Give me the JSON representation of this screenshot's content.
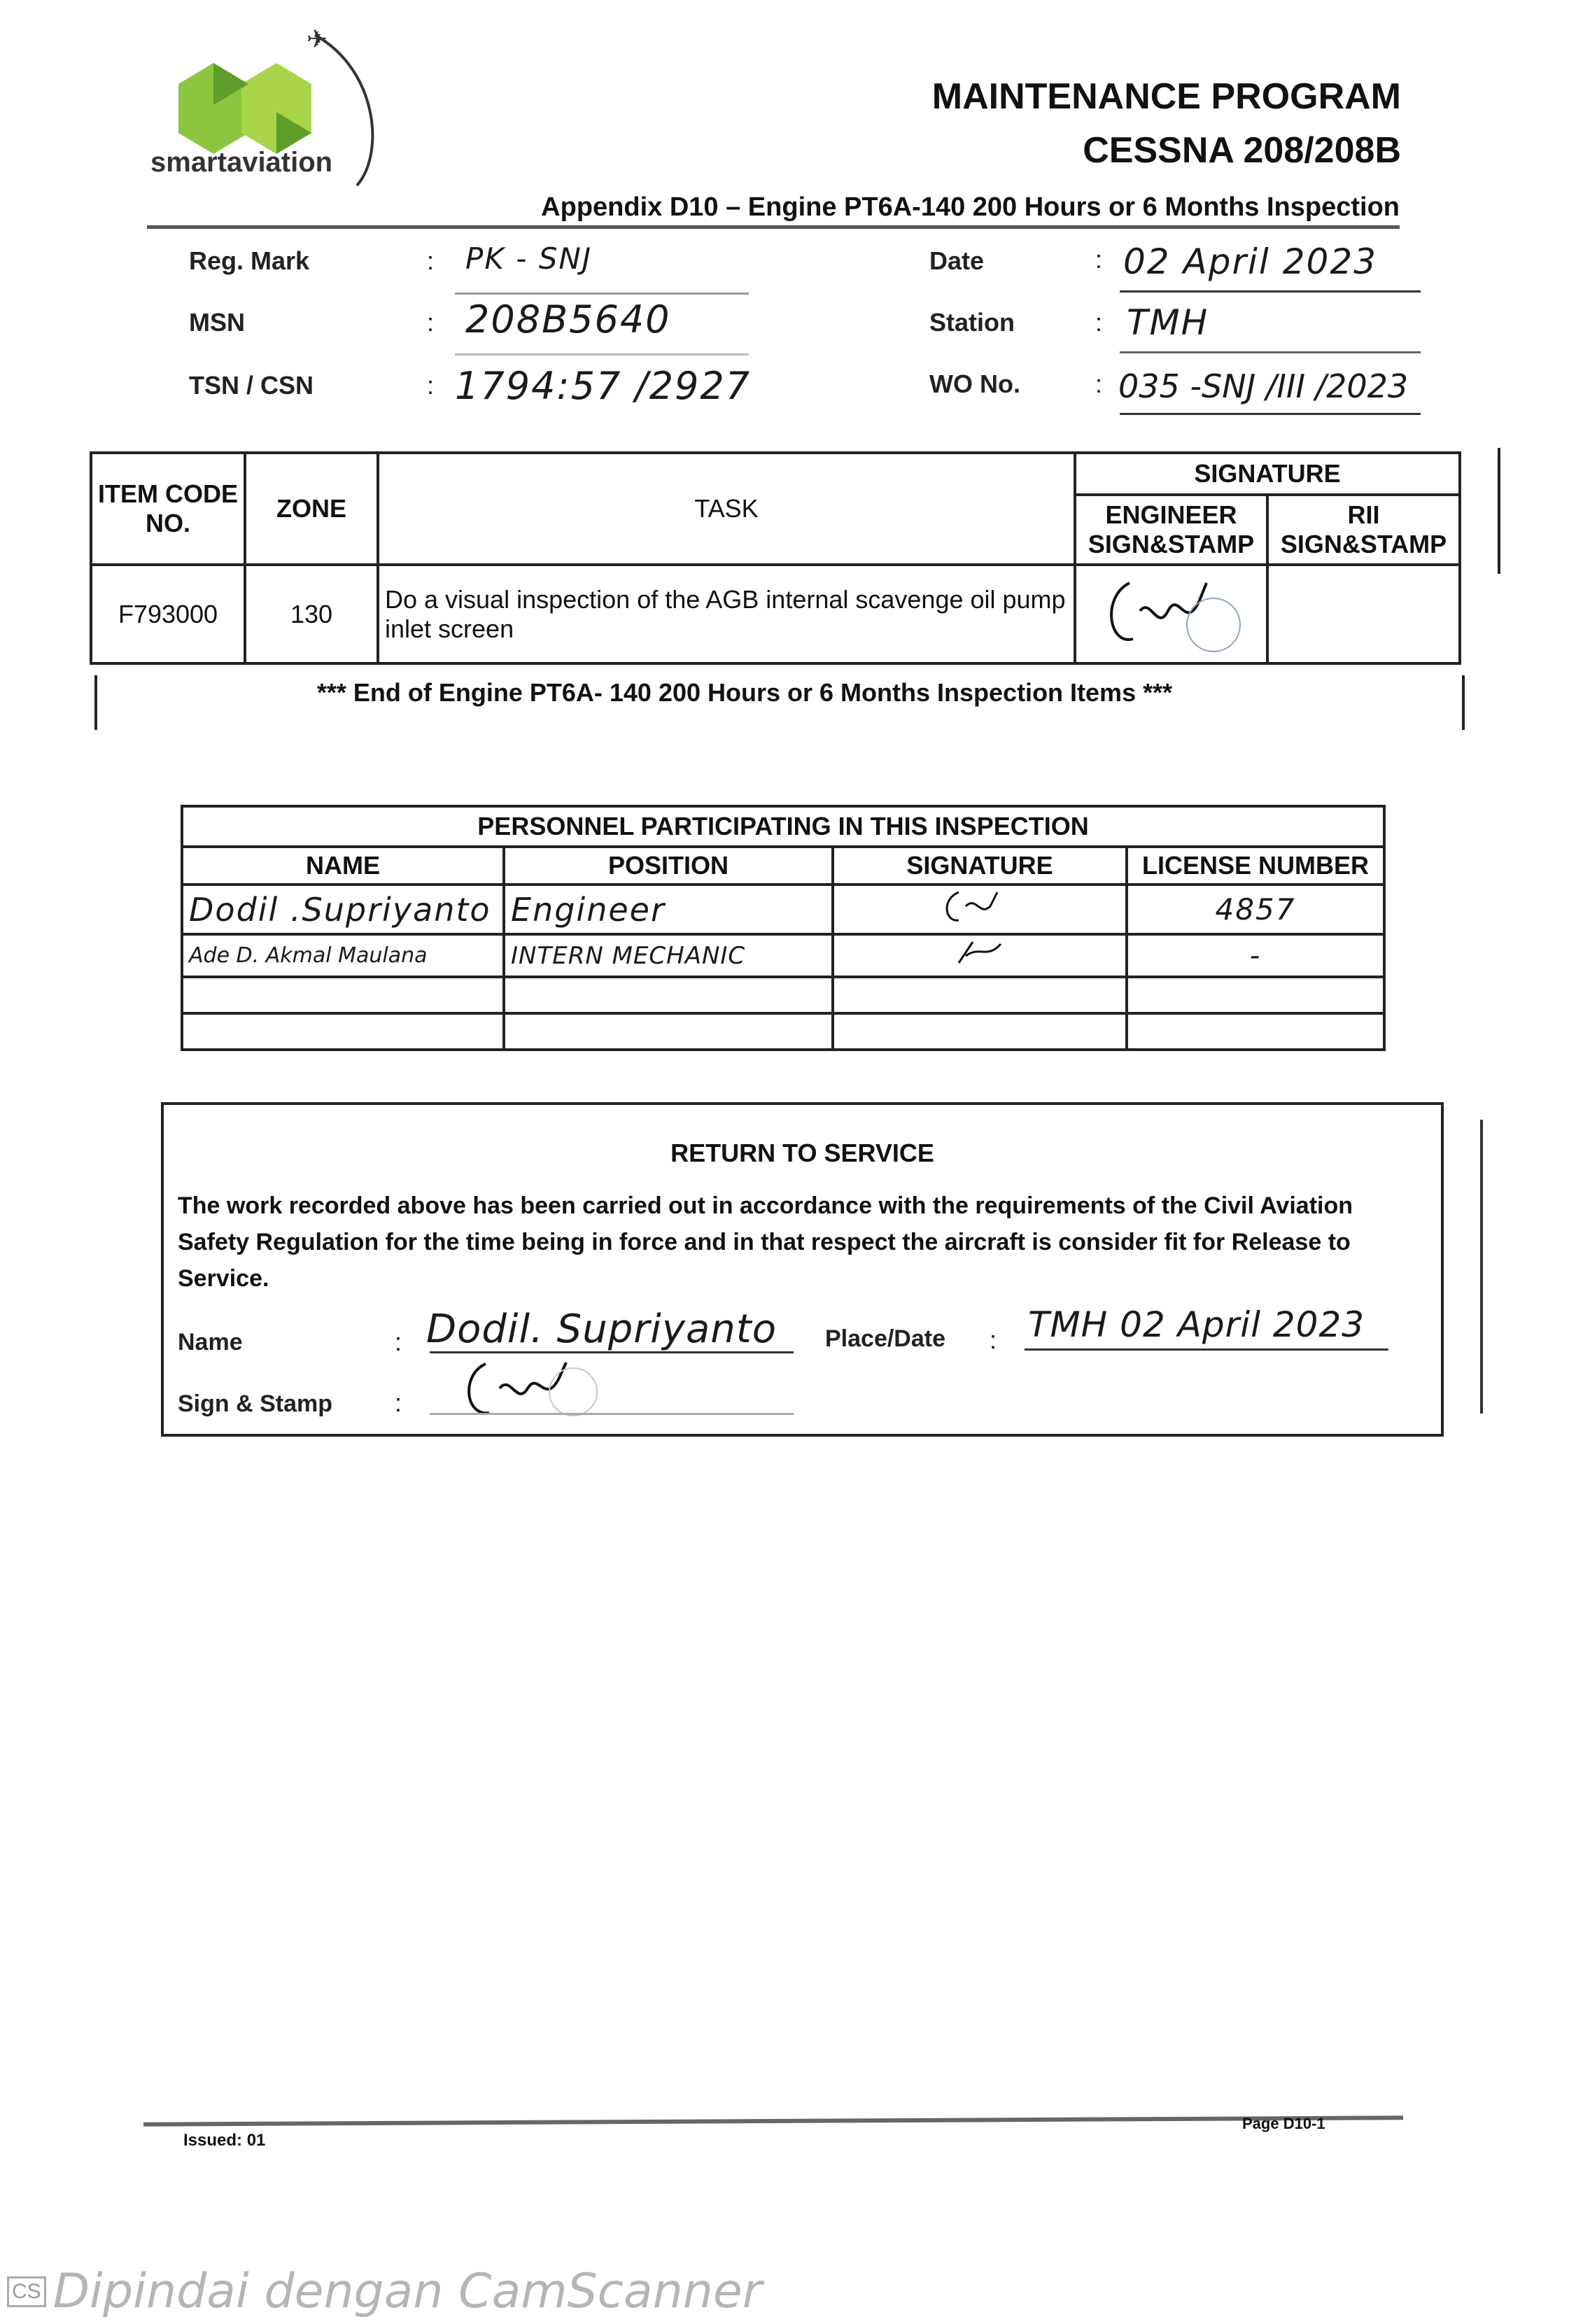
{
  "header": {
    "logo_text": "smartaviation",
    "title_line1": "MAINTENANCE PROGRAM",
    "title_line2": "CESSNA 208/208B",
    "appendix": "Appendix D10 – Engine PT6A-140 200 Hours or 6 Months Inspection",
    "brand_color": "#8cc63f"
  },
  "fields": {
    "reg_mark": {
      "label": "Reg. Mark",
      "value": "PK - SNJ"
    },
    "msn": {
      "label": "MSN",
      "value": "208B5640"
    },
    "tsn_csn": {
      "label": "TSN / CSN",
      "value": "1794:57 /2927"
    },
    "date": {
      "label": "Date",
      "value": "02 April 2023"
    },
    "station": {
      "label": "Station",
      "value": "TMH"
    },
    "wo_no": {
      "label": "WO No.",
      "value": "035 -SNJ /III /2023"
    }
  },
  "task_table": {
    "headers": {
      "item_code": "ITEM CODE NO.",
      "zone": "ZONE",
      "task": "TASK",
      "signature": "SIGNATURE",
      "engineer": "ENGINEER SIGN&STAMP",
      "rii": "RII SIGN&STAMP"
    },
    "rows": [
      {
        "item_code": "F793000",
        "zone": "130",
        "task": "Do a visual inspection of the AGB internal scavenge oil pump inlet screen",
        "engineer_sign": "signed",
        "rii_sign": ""
      }
    ],
    "end_note": "*** End of Engine PT6A- 140 200 Hours or 6 Months Inspection Items ***"
  },
  "personnel": {
    "title": "PERSONNEL PARTICIPATING IN THIS INSPECTION",
    "headers": [
      "NAME",
      "POSITION",
      "SIGNATURE",
      "LICENSE NUMBER"
    ],
    "rows": [
      {
        "name": "Dodil .Supriyanto",
        "position": "Engineer",
        "signature": "signed",
        "license": "4857"
      },
      {
        "name": "Ade D. Akmal Maulana",
        "position": "INTERN MECHANIC",
        "signature": "signed",
        "license": "-"
      },
      {
        "name": "",
        "position": "",
        "signature": "",
        "license": ""
      },
      {
        "name": "",
        "position": "",
        "signature": "",
        "license": ""
      }
    ]
  },
  "return_to_service": {
    "title": "RETURN TO SERVICE",
    "statement": "The work recorded above has been carried out in accordance with the requirements of the Civil Aviation Safety Regulation for the time being in force and in that respect the aircraft is consider fit for Release to Service.",
    "name_label": "Name",
    "name_value": "Dodil. Supriyanto",
    "place_date_label": "Place/Date",
    "place_date_value": "TMH 02 April 2023",
    "sign_label": "Sign & Stamp"
  },
  "footer": {
    "left": "Issued: 01",
    "right": "Page D10-1"
  },
  "watermark": "Dipindai dengan CamScanner"
}
